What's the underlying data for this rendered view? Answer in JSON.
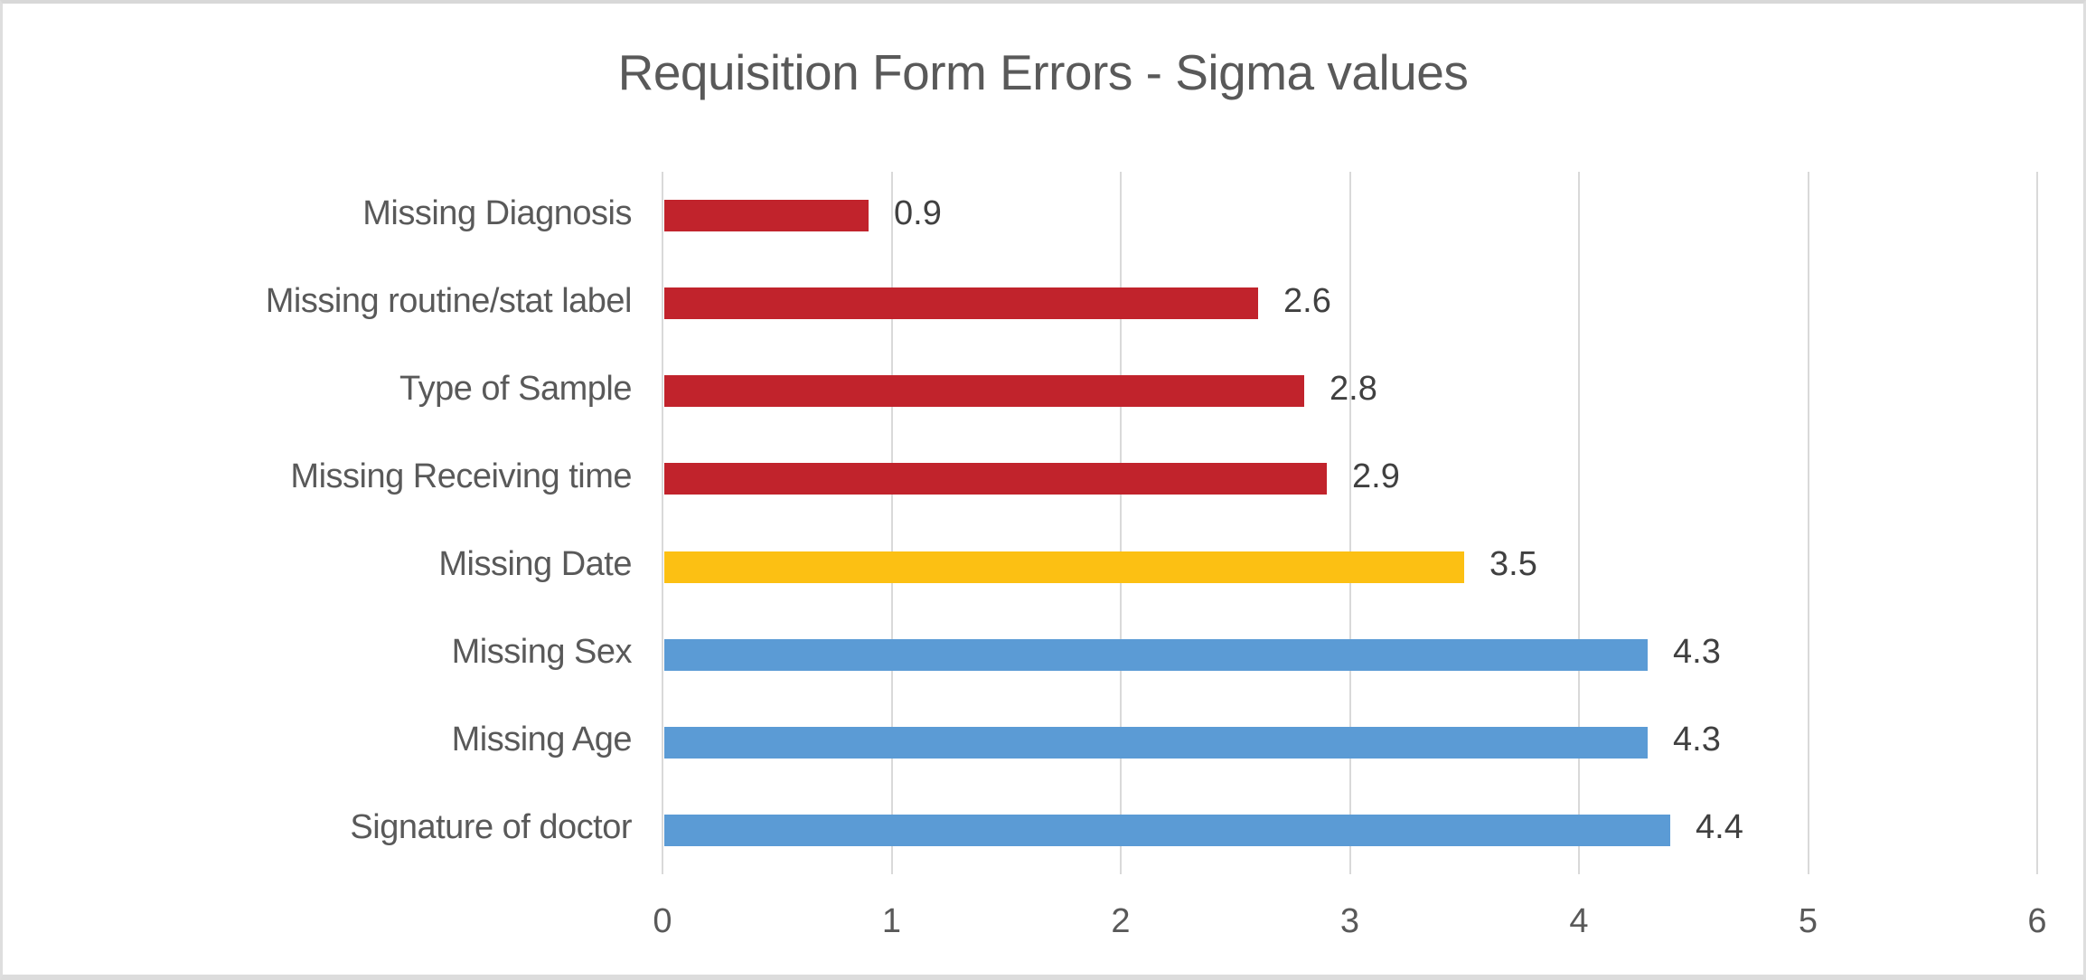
{
  "chart_data": {
    "type": "bar",
    "orientation": "horizontal",
    "title": "Requisition Form Errors - Sigma values",
    "categories": [
      "Missing Diagnosis",
      "Missing routine/stat label",
      "Type of Sample",
      "Missing Receiving time",
      "Missing Date",
      "Missing Sex",
      "Missing Age",
      "Signature of doctor"
    ],
    "values": [
      0.9,
      2.6,
      2.8,
      2.9,
      3.5,
      4.3,
      4.3,
      4.4
    ],
    "value_labels": [
      "0.9",
      "2.6",
      "2.8",
      "2.9",
      "3.5",
      "4.3",
      "4.3",
      "4.4"
    ],
    "bar_colors": [
      "#c1232c",
      "#c1232c",
      "#c1232c",
      "#c1232c",
      "#fcc013",
      "#5b9bd5",
      "#5b9bd5",
      "#5b9bd5"
    ],
    "xlabel": "",
    "ylabel": "",
    "xlim": [
      0,
      6
    ],
    "x_ticks": [
      "0",
      "1",
      "2",
      "3",
      "4",
      "5",
      "6"
    ],
    "gridlines": "vertical",
    "legend": "none",
    "styles": {
      "title_color": "#595959",
      "category_label_color": "#595959",
      "value_label_color": "#404040",
      "tick_label_color": "#595959",
      "gridline_color": "#d9d9d9",
      "frame_border_color": "#d8d8d8",
      "background_color": "#ffffff"
    }
  }
}
